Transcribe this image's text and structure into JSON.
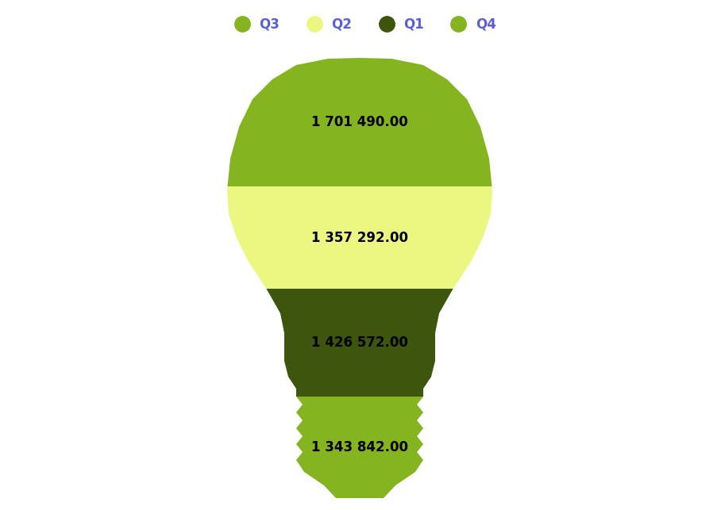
{
  "chart_data": {
    "type": "pictorial",
    "categories": [
      "Q3",
      "Q2",
      "Q1",
      "Q4"
    ],
    "values": [
      1701490,
      1357292,
      1426572,
      1343842
    ],
    "value_labels": [
      "1 701 490.00",
      "1 357 292.00",
      "1 426 572.00",
      "1 343 842.00"
    ],
    "colors": [
      "#84b41f",
      "#ecf781",
      "#3d550c",
      "#84b41f"
    ],
    "legend": "top",
    "data_labels": true
  }
}
